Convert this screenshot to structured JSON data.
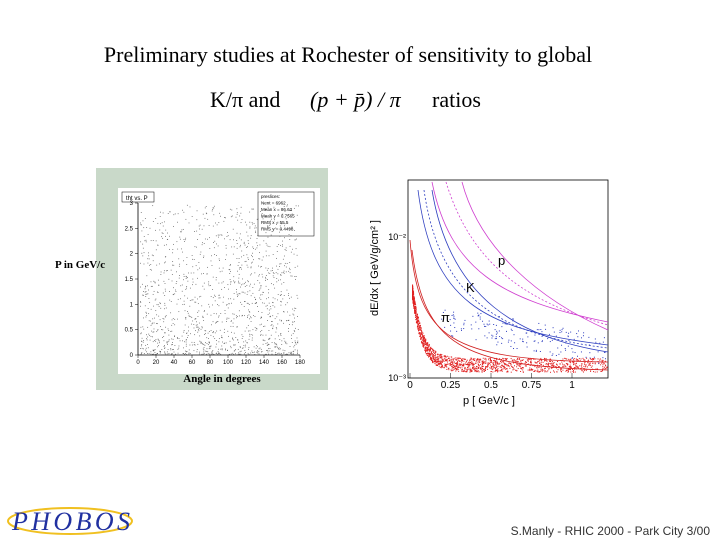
{
  "title": {
    "line1": "Preliminary studies at Rochester of sensitivity to global",
    "line2_prefix": "K/π and",
    "formula": "(p + p̄) / π",
    "line2_suffix": "ratios"
  },
  "left_plot": {
    "title": "tht vs. P",
    "stats": [
      "preslices:",
      "Nent = 6962",
      "Mean x = 86.62",
      "Mean y = 0.7565",
      "RMS x = 55.5",
      "RMS y = 0.4498"
    ],
    "y_axis_label": "P in GeV/c",
    "x_axis_label": "Angle in degrees",
    "x_ticks": [
      "0",
      "20",
      "40",
      "60",
      "80",
      "100",
      "120",
      "140",
      "160",
      "180"
    ],
    "y_ticks": [
      "0",
      "0.5",
      "1",
      "1.5",
      "2",
      "2.5",
      "3"
    ]
  },
  "right_plot": {
    "y_axis_label": "dE/dx [ GeV/g/cm² ]",
    "x_axis_label": "p [ GeV/c ]",
    "x_ticks": [
      "0",
      "0.25",
      "0.5",
      "0.75",
      "1"
    ],
    "y_ticks": [
      "10⁻³",
      "10⁻²"
    ],
    "curve_labels": [
      "p",
      "K",
      "π"
    ]
  },
  "footer": "S.Manly - RHIC 2000 - Park City 3/00",
  "logo": "PHOBOS"
}
